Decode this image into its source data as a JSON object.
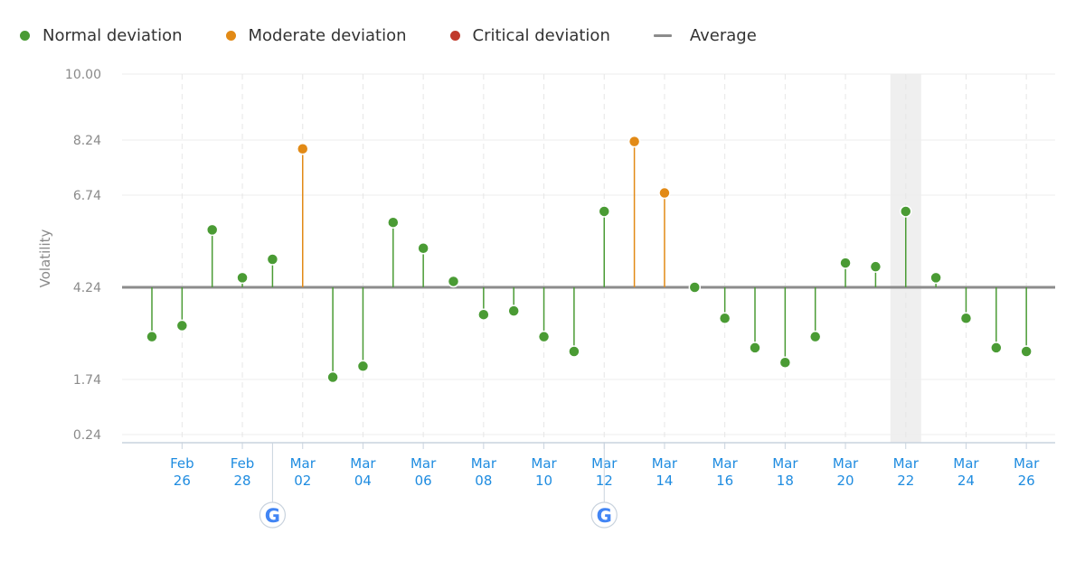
{
  "legend": {
    "normal": {
      "label": "Normal deviation",
      "color": "#4a9b34"
    },
    "moderate": {
      "label": "Moderate deviation",
      "color": "#e28a16"
    },
    "critical": {
      "label": "Critical deviation",
      "color": "#c0392b"
    },
    "average": {
      "label": "Average",
      "color": "#8c8c8c"
    }
  },
  "icons": {
    "google_update_marker": "google-logo-icon"
  },
  "chart_data": {
    "type": "lollipop",
    "title": "",
    "ylabel": "Volatility",
    "xlabel": "",
    "ylim": [
      0.24,
      10.0
    ],
    "yticks": [
      "10.00",
      "8.24",
      "6.74",
      "4.24",
      "1.74",
      "0.24"
    ],
    "average": 4.24,
    "grid": true,
    "legend_position": "top-left",
    "x_dates": [
      "Feb 25",
      "Feb 26",
      "Feb 27",
      "Feb 28",
      "Mar 01",
      "Mar 02",
      "Mar 03",
      "Mar 04",
      "Mar 05",
      "Mar 06",
      "Mar 07",
      "Mar 08",
      "Mar 09",
      "Mar 10",
      "Mar 11",
      "Mar 12",
      "Mar 13",
      "Mar 14",
      "Mar 15",
      "Mar 16",
      "Mar 17",
      "Mar 18",
      "Mar 19",
      "Mar 20",
      "Mar 21",
      "Mar 22",
      "Mar 23",
      "Mar 24",
      "Mar 25",
      "Mar 26"
    ],
    "x_tick_labels": [
      {
        "date": "Feb 26",
        "line1": "Feb",
        "line2": "26"
      },
      {
        "date": "Feb 28",
        "line1": "Feb",
        "line2": "28"
      },
      {
        "date": "Mar 02",
        "line1": "Mar",
        "line2": "02"
      },
      {
        "date": "Mar 04",
        "line1": "Mar",
        "line2": "04"
      },
      {
        "date": "Mar 06",
        "line1": "Mar",
        "line2": "06"
      },
      {
        "date": "Mar 08",
        "line1": "Mar",
        "line2": "08"
      },
      {
        "date": "Mar 10",
        "line1": "Mar",
        "line2": "10"
      },
      {
        "date": "Mar 12",
        "line1": "Mar",
        "line2": "12"
      },
      {
        "date": "Mar 14",
        "line1": "Mar",
        "line2": "14"
      },
      {
        "date": "Mar 16",
        "line1": "Mar",
        "line2": "16"
      },
      {
        "date": "Mar 18",
        "line1": "Mar",
        "line2": "18"
      },
      {
        "date": "Mar 20",
        "line1": "Mar",
        "line2": "20"
      },
      {
        "date": "Mar 22",
        "line1": "Mar",
        "line2": "22"
      },
      {
        "date": "Mar 24",
        "line1": "Mar",
        "line2": "24"
      },
      {
        "date": "Mar 26",
        "line1": "Mar",
        "line2": "26"
      }
    ],
    "values": [
      2.9,
      3.2,
      5.8,
      4.5,
      5.0,
      8.0,
      1.8,
      2.1,
      6.0,
      5.3,
      4.4,
      3.5,
      3.6,
      2.9,
      2.5,
      6.3,
      8.2,
      6.8,
      4.24,
      3.4,
      2.6,
      2.2,
      2.9,
      4.9,
      4.8,
      6.3,
      4.5,
      3.4,
      2.6,
      2.5
    ],
    "categories": [
      "normal",
      "normal",
      "normal",
      "normal",
      "normal",
      "moderate",
      "normal",
      "normal",
      "normal",
      "normal",
      "normal",
      "normal",
      "normal",
      "normal",
      "normal",
      "normal",
      "moderate",
      "moderate",
      "normal",
      "normal",
      "normal",
      "normal",
      "normal",
      "normal",
      "normal",
      "normal",
      "normal",
      "normal",
      "normal",
      "normal"
    ],
    "google_updates": [
      "Mar 01",
      "Mar 12"
    ],
    "highlighted_date": "Mar 22"
  }
}
